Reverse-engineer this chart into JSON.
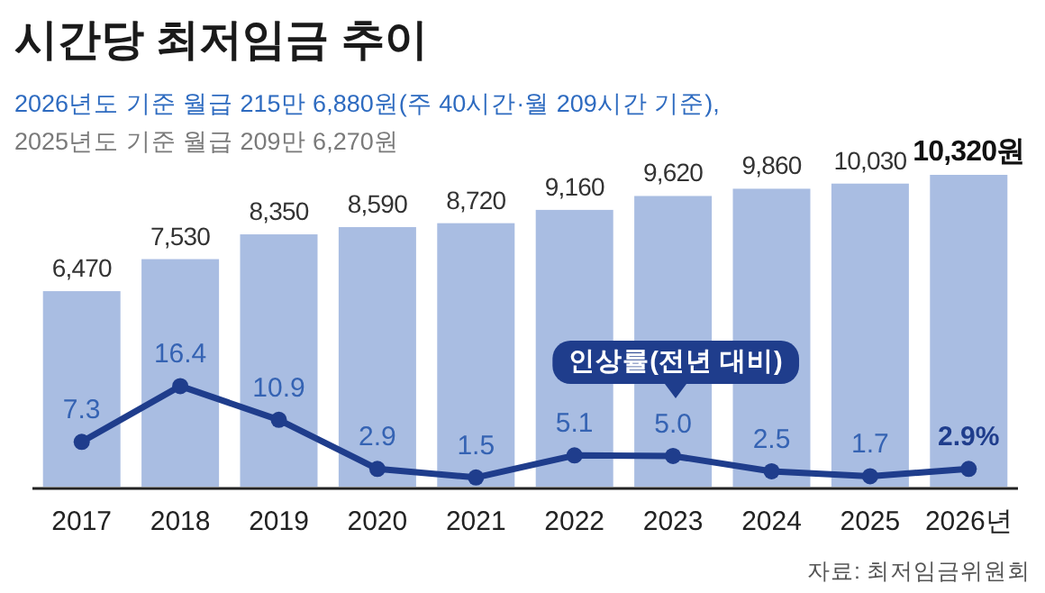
{
  "chart_data": {
    "type": "bar",
    "title": "시간당 최저임금 추이",
    "subtitle": "2026년도 기준 월급 215만 6,880원(주 40시간·월 209시간 기준),\n2025년도 기준 월급 209만 6,270원",
    "categories": [
      "2017",
      "2018",
      "2019",
      "2020",
      "2021",
      "2022",
      "2023",
      "2024",
      "2025",
      "2026년"
    ],
    "series": [
      {
        "color": "#a9bde2",
        "values": [
          6470,
          7530,
          8350,
          8590,
          8720,
          9160,
          9620,
          9860,
          10030,
          10320
        ],
        "value_labels": [
          "6,470",
          "7,530",
          "8,350",
          "8,590",
          "8,720",
          "9,160",
          "9,620",
          "9,860",
          "10,030",
          "10,320원"
        ]
      },
      {
        "type": "line",
        "name": "인상률(전년 대비)",
        "axis": "y2",
        "marker": "circle",
        "color": "#1f3d8c",
        "values": [
          7.3,
          16.4,
          10.9,
          2.9,
          1.5,
          5.1,
          5.0,
          2.5,
          1.7,
          2.9
        ],
        "value_labels": [
          "7.3",
          "16.4",
          "10.9",
          "2.9",
          "1.5",
          "5.1",
          "5.0",
          "2.5",
          "1.7",
          "2.9%"
        ]
      }
    ],
    "legend": "center",
    "annotations": [
      "자료: 최저임금위원회"
    ]
  }
}
